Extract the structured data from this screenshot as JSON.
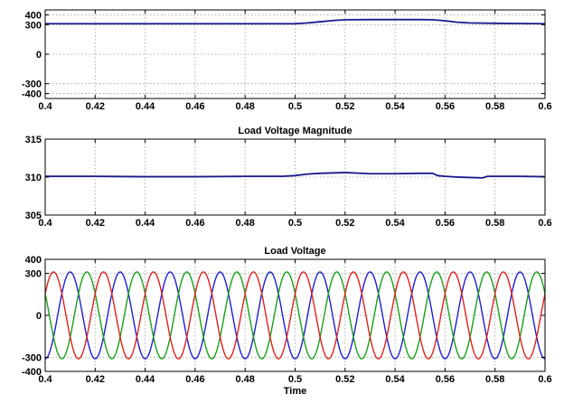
{
  "chart_data": [
    {
      "type": "line",
      "title": "",
      "xlabel": "",
      "ylabel": "",
      "xlim": [
        0.4,
        0.6
      ],
      "ylim": [
        -450,
        450
      ],
      "xticks": [
        0.4,
        0.42,
        0.44,
        0.46,
        0.48,
        0.5,
        0.52,
        0.54,
        0.56,
        0.58,
        0.6
      ],
      "xtick_labels": [
        "0.4",
        "0.42",
        "0.44",
        "0.46",
        "0.48",
        "0.5",
        "0.52",
        "0.54",
        "0.56",
        "0.58",
        "0.6"
      ],
      "yticks": [
        400,
        300,
        0,
        -300,
        -400
      ],
      "ytick_labels": [
        "400",
        "300",
        "0",
        "-300",
        "-400"
      ],
      "grid": true,
      "series": [
        {
          "color": "#1a1a8c",
          "x": [
            0.4,
            0.41,
            0.42,
            0.43,
            0.44,
            0.45,
            0.46,
            0.47,
            0.48,
            0.49,
            0.5,
            0.505,
            0.51,
            0.515,
            0.52,
            0.53,
            0.54,
            0.55,
            0.555,
            0.56,
            0.565,
            0.57,
            0.58,
            0.59,
            0.6
          ],
          "y": [
            310,
            310,
            310,
            310,
            310,
            310,
            310,
            310,
            310,
            310,
            310,
            318,
            330,
            342,
            350,
            352,
            352,
            352,
            350,
            340,
            325,
            318,
            314,
            312,
            310
          ]
        }
      ]
    },
    {
      "type": "line",
      "title": "Load Voltage Magnitude",
      "xlabel": "",
      "ylabel": "",
      "xlim": [
        0.4,
        0.6
      ],
      "ylim": [
        305,
        315
      ],
      "xticks": [
        0.4,
        0.42,
        0.44,
        0.46,
        0.48,
        0.5,
        0.52,
        0.54,
        0.56,
        0.58,
        0.6
      ],
      "xtick_labels": [
        "0.4",
        "0.42",
        "0.44",
        "0.46",
        "0.48",
        "0.5",
        "0.52",
        "0.54",
        "0.56",
        "0.58",
        "0.6"
      ],
      "yticks": [
        315,
        310,
        305
      ],
      "ytick_labels": [
        "315",
        "310",
        "305"
      ],
      "grid": true,
      "series": [
        {
          "color": "#1a1a8c",
          "x": [
            0.4,
            0.42,
            0.44,
            0.46,
            0.48,
            0.495,
            0.5,
            0.505,
            0.51,
            0.52,
            0.53,
            0.54,
            0.55,
            0.555,
            0.557,
            0.56,
            0.565,
            0.57,
            0.575,
            0.577,
            0.58,
            0.59,
            0.6
          ],
          "y": [
            310.1,
            310.1,
            310.05,
            310.05,
            310.1,
            310.1,
            310.2,
            310.4,
            310.5,
            310.6,
            310.45,
            310.45,
            310.5,
            310.5,
            310.2,
            310.1,
            310.0,
            309.95,
            309.9,
            310.1,
            310.1,
            310.1,
            310.05
          ]
        }
      ]
    },
    {
      "type": "line",
      "title": "Load Voltage",
      "xlabel": "Time",
      "ylabel": "",
      "xlim": [
        0.4,
        0.6
      ],
      "ylim": [
        -400,
        400
      ],
      "xticks": [
        0.4,
        0.42,
        0.44,
        0.46,
        0.48,
        0.5,
        0.52,
        0.54,
        0.56,
        0.58,
        0.6
      ],
      "xtick_labels": [
        "0.4",
        "0.42",
        "0.44",
        "0.46",
        "0.48",
        "0.5",
        "0.52",
        "0.54",
        "0.56",
        "0.58",
        "0.6"
      ],
      "yticks": [
        400,
        300,
        0,
        -300,
        -400
      ],
      "ytick_labels": [
        "400",
        "300",
        "0",
        "-300",
        "-400"
      ],
      "grid": true,
      "waveform": "three-phase sine",
      "amplitude": 310,
      "frequency_hz": 50,
      "series": [
        {
          "color": "#1f1fd0",
          "phase_deg": -90
        },
        {
          "color": "#18a018",
          "phase_deg": 150
        },
        {
          "color": "#e02020",
          "phase_deg": 30
        }
      ]
    }
  ]
}
